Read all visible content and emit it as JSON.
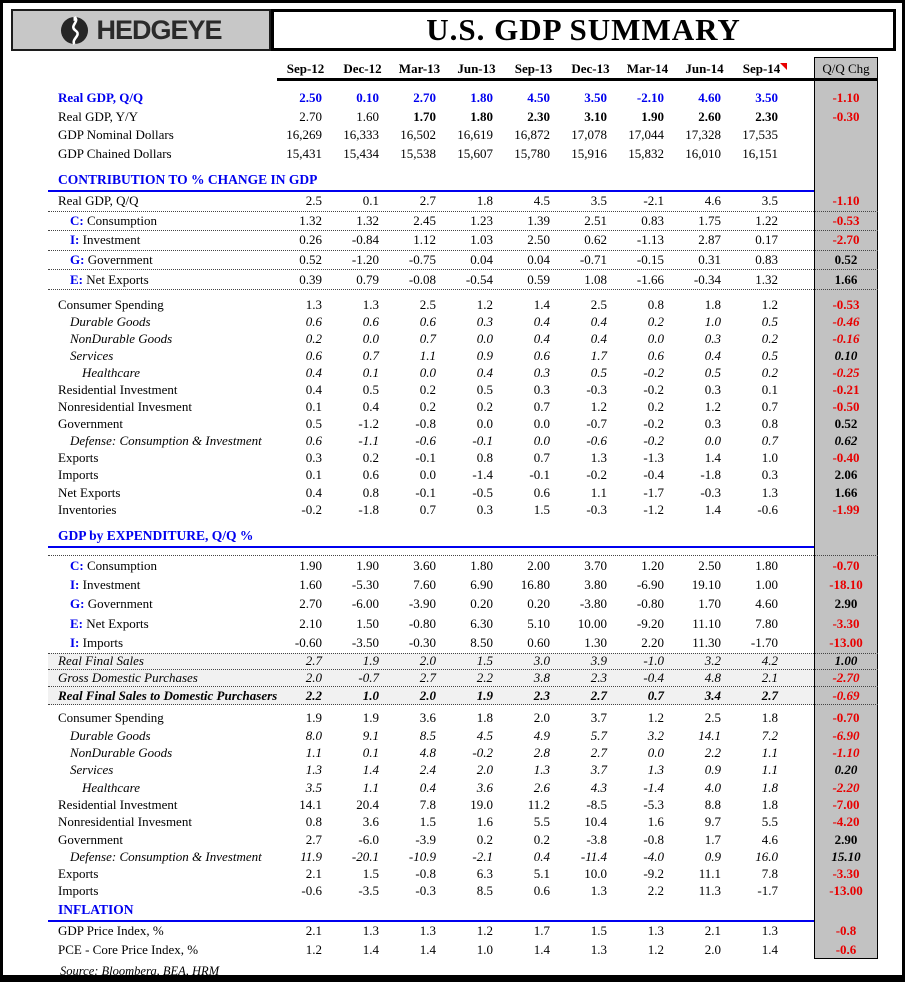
{
  "header": {
    "logo_text": "HEDGEYE",
    "title": "U.S. GDP SUMMARY"
  },
  "colors": {
    "accent_blue": "#0000ee",
    "negative_red": "#e80000",
    "qq_column_gray": "#c2c2c2",
    "header_gray": "#c7c7c7"
  },
  "columns": [
    "Sep-12",
    "Dec-12",
    "Mar-13",
    "Jun-13",
    "Sep-13",
    "Dec-13",
    "Mar-14",
    "Jun-14",
    "Sep-14"
  ],
  "qq_header": "Q/Q Chg",
  "comment_marker_column": 8,
  "source_note": "Source: Bloomberg, BEA, HRM",
  "blocks": [
    {
      "t": "gap",
      "h": 8
    },
    {
      "t": "rows",
      "h": 18.5,
      "rows": [
        {
          "label": "Real GDP, Q/Q",
          "lb": 1,
          "vb": 1,
          "vblue": 1,
          "v": [
            "2.50",
            "0.10",
            "2.70",
            "1.80",
            "4.50",
            "3.50",
            "-2.10",
            "4.60",
            "3.50"
          ],
          "qq": "-1.10"
        },
        {
          "label": "Real GDP, Y/Y",
          "bf": 2,
          "v": [
            "2.70",
            "1.60",
            "1.70",
            "1.80",
            "2.30",
            "3.10",
            "1.90",
            "2.60",
            "2.30"
          ],
          "qq": "-0.30"
        },
        {
          "label": "GDP Nominal Dollars",
          "v": [
            "16,269",
            "16,333",
            "16,502",
            "16,619",
            "16,872",
            "17,078",
            "17,044",
            "17,328",
            "17,535"
          ],
          "qq": ""
        },
        {
          "label": "GDP Chained Dollars",
          "v": [
            "15,431",
            "15,434",
            "15,538",
            "15,607",
            "15,780",
            "15,916",
            "15,832",
            "16,010",
            "16,151"
          ],
          "qq": ""
        }
      ]
    },
    {
      "t": "gap",
      "h": 9
    },
    {
      "t": "title",
      "label": "CONTRIBUTION TO % CHANGE IN GDP"
    },
    {
      "t": "rows",
      "h": 19.6,
      "rows": [
        {
          "label": "Real GDP, Q/Q",
          "dotb": 1,
          "v": [
            "2.5",
            "0.1",
            "2.7",
            "1.8",
            "4.5",
            "3.5",
            "-2.1",
            "4.6",
            "3.5"
          ],
          "qq": "-1.10"
        },
        {
          "pf": "C:",
          "label": "Consumption",
          "ind": 1,
          "dotb": 1,
          "v": [
            "1.32",
            "1.32",
            "2.45",
            "1.23",
            "1.39",
            "2.51",
            "0.83",
            "1.75",
            "1.22"
          ],
          "qq": "-0.53"
        },
        {
          "pf": "I:",
          "label": "Investment",
          "ind": 1,
          "dotb": 1,
          "v": [
            "0.26",
            "-0.84",
            "1.12",
            "1.03",
            "2.50",
            "0.62",
            "-1.13",
            "2.87",
            "0.17"
          ],
          "qq": "-2.70"
        },
        {
          "pf": "G:",
          "label": "Government",
          "ind": 1,
          "dotb": 1,
          "v": [
            "0.52",
            "-1.20",
            "-0.75",
            "0.04",
            "0.04",
            "-0.71",
            "-0.15",
            "0.31",
            "0.83"
          ],
          "qq": "0.52"
        },
        {
          "pf": "E:",
          "label": "Net Exports",
          "ind": 1,
          "dotb": 1,
          "v": [
            "0.39",
            "0.79",
            "-0.08",
            "-0.54",
            "0.59",
            "1.08",
            "-1.66",
            "-0.34",
            "1.32"
          ],
          "qq": "1.66"
        }
      ]
    },
    {
      "t": "gap",
      "h": 6
    },
    {
      "t": "rows",
      "h": 17.1,
      "rows": [
        {
          "label": "Consumer Spending",
          "v": [
            "1.3",
            "1.3",
            "2.5",
            "1.2",
            "1.4",
            "2.5",
            "0.8",
            "1.8",
            "1.2"
          ],
          "qq": "-0.53"
        },
        {
          "label": "Durable Goods",
          "it": 1,
          "ind": 1,
          "v": [
            "0.6",
            "0.6",
            "0.6",
            "0.3",
            "0.4",
            "0.4",
            "0.2",
            "1.0",
            "0.5"
          ],
          "qq": "-0.46"
        },
        {
          "label": "NonDurable Goods",
          "it": 1,
          "ind": 1,
          "v": [
            "0.2",
            "0.0",
            "0.7",
            "0.0",
            "0.4",
            "0.4",
            "0.0",
            "0.3",
            "0.2"
          ],
          "qq": "-0.16"
        },
        {
          "label": "Services",
          "it": 1,
          "ind": 1,
          "v": [
            "0.6",
            "0.7",
            "1.1",
            "0.9",
            "0.6",
            "1.7",
            "0.6",
            "0.4",
            "0.5"
          ],
          "qq": "0.10"
        },
        {
          "label": "Healthcare",
          "it": 1,
          "ind": 2,
          "v": [
            "0.4",
            "0.1",
            "0.0",
            "0.4",
            "0.3",
            "0.5",
            "-0.2",
            "0.5",
            "0.2"
          ],
          "qq": "-0.25"
        },
        {
          "label": "Residential Investment",
          "v": [
            "0.4",
            "0.5",
            "0.2",
            "0.5",
            "0.3",
            "-0.3",
            "-0.2",
            "0.3",
            "0.1"
          ],
          "qq": "-0.21"
        },
        {
          "label": "Nonresidential Invesment",
          "v": [
            "0.1",
            "0.4",
            "0.2",
            "0.2",
            "0.7",
            "1.2",
            "0.2",
            "1.2",
            "0.7"
          ],
          "qq": "-0.50"
        },
        {
          "label": "Government",
          "v": [
            "0.5",
            "-1.2",
            "-0.8",
            "0.0",
            "0.0",
            "-0.7",
            "-0.2",
            "0.3",
            "0.8"
          ],
          "qq": "0.52"
        },
        {
          "label": "Defense: Consumption & Investment",
          "it": 1,
          "ind": 1,
          "v": [
            "0.6",
            "-1.1",
            "-0.6",
            "-0.1",
            "0.0",
            "-0.6",
            "-0.2",
            "0.0",
            "0.7"
          ],
          "qq": "0.62"
        },
        {
          "label": "Exports",
          "v": [
            "0.3",
            "0.2",
            "-0.1",
            "0.8",
            "0.7",
            "1.3",
            "-1.3",
            "1.4",
            "1.0"
          ],
          "qq": "-0.40"
        },
        {
          "label": "Imports",
          "v": [
            "0.1",
            "0.6",
            "0.0",
            "-1.4",
            "-0.1",
            "-0.2",
            "-0.4",
            "-1.8",
            "0.3"
          ],
          "qq": "2.06"
        },
        {
          "label": "Net Exports",
          "v": [
            "0.4",
            "0.8",
            "-0.1",
            "-0.5",
            "0.6",
            "1.1",
            "-1.7",
            "-0.3",
            "1.3"
          ],
          "qq": "1.66"
        },
        {
          "label": "Inventories",
          "v": [
            "-0.2",
            "-1.8",
            "0.7",
            "0.3",
            "1.5",
            "-0.3",
            "-1.2",
            "1.4",
            "-0.6"
          ],
          "qq": "-1.99"
        }
      ]
    },
    {
      "t": "gap",
      "h": 10
    },
    {
      "t": "title",
      "label": "GDP by EXPENDITURE, Q/Q %"
    },
    {
      "t": "dotrule",
      "h": 8
    },
    {
      "t": "rows",
      "h": 19.3,
      "rows": [
        {
          "pf": "C:",
          "label": "Consumption",
          "ind": 1,
          "v": [
            "1.90",
            "1.90",
            "3.60",
            "1.80",
            "2.00",
            "3.70",
            "1.20",
            "2.50",
            "1.80"
          ],
          "qq": "-0.70"
        },
        {
          "pf": "I:",
          "label": "Investment",
          "ind": 1,
          "v": [
            "1.60",
            "-5.30",
            "7.60",
            "6.90",
            "16.80",
            "3.80",
            "-6.90",
            "19.10",
            "1.00"
          ],
          "qq": "-18.10"
        },
        {
          "pf": "G:",
          "label": "Government",
          "ind": 1,
          "v": [
            "2.70",
            "-6.00",
            "-3.90",
            "0.20",
            "0.20",
            "-3.80",
            "-0.80",
            "1.70",
            "4.60"
          ],
          "qq": "2.90"
        },
        {
          "pf": "E:",
          "label": "Net Exports",
          "ind": 1,
          "v": [
            "2.10",
            "1.50",
            "-0.80",
            "6.30",
            "5.10",
            "10.00",
            "-9.20",
            "11.10",
            "7.80"
          ],
          "qq": "-3.30"
        },
        {
          "pf": "I:",
          "label": "Imports",
          "ind": 1,
          "v": [
            "-0.60",
            "-3.50",
            "-0.30",
            "8.50",
            "0.60",
            "1.30",
            "2.20",
            "11.30",
            "-1.70"
          ],
          "qq": "-13.00"
        }
      ]
    },
    {
      "t": "rows",
      "h": 17.4,
      "rows": [
        {
          "label": "Real Final Sales",
          "it": 1,
          "dota": 1,
          "dotb": 1,
          "shade": 1,
          "v": [
            "2.7",
            "1.9",
            "2.0",
            "1.5",
            "3.0",
            "3.9",
            "-1.0",
            "3.2",
            "4.2"
          ],
          "qq": "1.00"
        },
        {
          "label": "Gross Domestic Purchases",
          "it": 1,
          "dotb": 1,
          "shade": 1,
          "v": [
            "2.0",
            "-0.7",
            "2.7",
            "2.2",
            "3.8",
            "2.3",
            "-0.4",
            "4.8",
            "2.1"
          ],
          "qq": "-2.70"
        },
        {
          "label": "Real Final Sales to Domestic Purchasers",
          "it": 1,
          "lbold": 1,
          "vb": 1,
          "dotb": 1,
          "shade": 1,
          "v": [
            "2.2",
            "1.0",
            "2.0",
            "1.9",
            "2.3",
            "2.7",
            "0.7",
            "3.4",
            "2.7"
          ],
          "qq": "-0.69"
        }
      ]
    },
    {
      "t": "gap",
      "h": 5
    },
    {
      "t": "rows",
      "h": 17.3,
      "rows": [
        {
          "label": "Consumer Spending",
          "v": [
            "1.9",
            "1.9",
            "3.6",
            "1.8",
            "2.0",
            "3.7",
            "1.2",
            "2.5",
            "1.8"
          ],
          "qq": "-0.70"
        },
        {
          "label": "Durable Goods",
          "it": 1,
          "ind": 1,
          "v": [
            "8.0",
            "9.1",
            "8.5",
            "4.5",
            "4.9",
            "5.7",
            "3.2",
            "14.1",
            "7.2"
          ],
          "qq": "-6.90"
        },
        {
          "label": "NonDurable Goods",
          "it": 1,
          "ind": 1,
          "v": [
            "1.1",
            "0.1",
            "4.8",
            "-0.2",
            "2.8",
            "2.7",
            "0.0",
            "2.2",
            "1.1"
          ],
          "qq": "-1.10"
        },
        {
          "label": "Services",
          "it": 1,
          "ind": 1,
          "v": [
            "1.3",
            "1.4",
            "2.4",
            "2.0",
            "1.3",
            "3.7",
            "1.3",
            "0.9",
            "1.1"
          ],
          "qq": "0.20"
        },
        {
          "label": "Healthcare",
          "it": 1,
          "ind": 2,
          "v": [
            "3.5",
            "1.1",
            "0.4",
            "3.6",
            "2.6",
            "4.3",
            "-1.4",
            "4.0",
            "1.8"
          ],
          "qq": "-2.20"
        },
        {
          "label": "Residential Investment",
          "v": [
            "14.1",
            "20.4",
            "7.8",
            "19.0",
            "11.2",
            "-8.5",
            "-5.3",
            "8.8",
            "1.8"
          ],
          "qq": "-7.00"
        },
        {
          "label": "Nonresidential Invesment",
          "v": [
            "0.8",
            "3.6",
            "1.5",
            "1.6",
            "5.5",
            "10.4",
            "1.6",
            "9.7",
            "5.5"
          ],
          "qq": "-4.20"
        },
        {
          "label": "Government",
          "v": [
            "2.7",
            "-6.0",
            "-3.9",
            "0.2",
            "0.2",
            "-3.8",
            "-0.8",
            "1.7",
            "4.6"
          ],
          "qq": "2.90"
        },
        {
          "label": "Defense: Consumption & Investment",
          "it": 1,
          "ind": 1,
          "v": [
            "11.9",
            "-20.1",
            "-10.9",
            "-2.1",
            "0.4",
            "-11.4",
            "-4.0",
            "0.9",
            "16.0"
          ],
          "qq": "15.10"
        },
        {
          "label": "Exports",
          "v": [
            "2.1",
            "1.5",
            "-0.8",
            "6.3",
            "5.1",
            "10.0",
            "-9.2",
            "11.1",
            "7.8"
          ],
          "qq": "-3.30"
        },
        {
          "label": "Imports",
          "v": [
            "-0.6",
            "-3.5",
            "-0.3",
            "8.5",
            "0.6",
            "1.3",
            "2.2",
            "11.3",
            "-1.7"
          ],
          "qq": "-13.00"
        }
      ]
    },
    {
      "t": "gap",
      "h": 2
    },
    {
      "t": "title",
      "label": "INFLATION"
    },
    {
      "t": "rows",
      "h": 18.6,
      "rows": [
        {
          "label": "GDP Price Index, %",
          "v": [
            "2.1",
            "1.3",
            "1.3",
            "1.2",
            "1.7",
            "1.5",
            "1.3",
            "2.1",
            "1.3"
          ],
          "qq": "-0.8"
        },
        {
          "label": "PCE - Core Price Index, %",
          "v": [
            "1.2",
            "1.4",
            "1.4",
            "1.0",
            "1.4",
            "1.3",
            "1.2",
            "2.0",
            "1.4"
          ],
          "qq": "-0.6"
        }
      ]
    }
  ]
}
